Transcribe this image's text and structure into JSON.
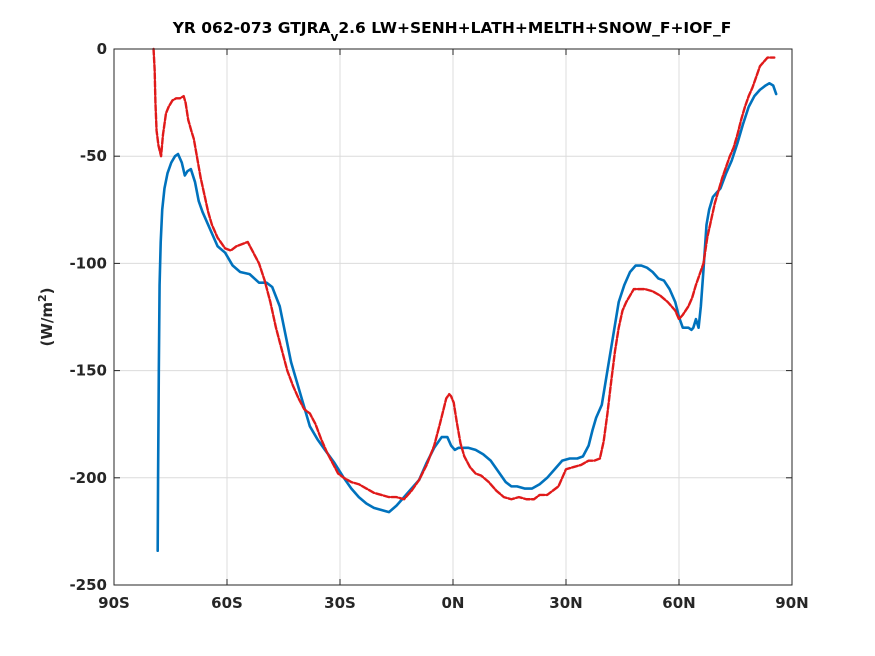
{
  "chart_data": {
    "type": "line",
    "title_main": "YR 062-073 GTJRA",
    "title_sub": "v",
    "title_rest": "2.6 LW+SENH+LATH+MELTH+SNOW_F+IOF_F",
    "ylabel_main": "(W/m",
    "ylabel_sup": "2",
    "ylabel_end": ")",
    "xlim": [
      -90,
      90
    ],
    "ylim": [
      -250,
      0
    ],
    "grid": true,
    "x_ticks": [
      {
        "value": -90,
        "label": "90S"
      },
      {
        "value": -60,
        "label": "60S"
      },
      {
        "value": -30,
        "label": "30S"
      },
      {
        "value": 0,
        "label": "0N"
      },
      {
        "value": 30,
        "label": "30N"
      },
      {
        "value": 60,
        "label": "60N"
      },
      {
        "value": 90,
        "label": "90N"
      }
    ],
    "y_ticks": [
      {
        "value": 0,
        "label": "0"
      },
      {
        "value": -50,
        "label": "-50"
      },
      {
        "value": -100,
        "label": "-100"
      },
      {
        "value": -150,
        "label": "-150"
      },
      {
        "value": -200,
        "label": "-200"
      },
      {
        "value": -250,
        "label": "-250"
      }
    ],
    "series": [
      {
        "color": "#0072bd",
        "style": "solid",
        "x": [
          -78.4,
          -78.3,
          -78.1,
          -77.9,
          -77.6,
          -77.2,
          -76.6,
          -75.8,
          -74.8,
          -73.8,
          -73.0,
          -72.0,
          -71.2,
          -70.5,
          -69.6,
          -68.5,
          -67.5,
          -66.5,
          -64.5,
          -62.5,
          -60.5,
          -58.5,
          -56.5,
          -54.0,
          -51.5,
          -49.5,
          -48.0,
          -46.0,
          -44.5,
          -43.0,
          -41.5,
          -40.0,
          -38.0,
          -36.0,
          -34.0,
          -31.5,
          -29.0,
          -27.0,
          -25.0,
          -23.0,
          -21.0,
          -19.0,
          -17.0,
          -15.0,
          -13.0,
          -11.0,
          -9.0,
          -7.0,
          -5.0,
          -3.0,
          -1.5,
          -0.5,
          0.5,
          1.5,
          2.5,
          4.0,
          6.0,
          8.0,
          10.0,
          12.0,
          14.0,
          15.5,
          17.0,
          19.0,
          21.0,
          22.0,
          23.0,
          25.0,
          27.0,
          29.0,
          31.0,
          33.0,
          34.5,
          36.0,
          37.0,
          38.0,
          39.5,
          41.0,
          42.5,
          44.0,
          45.5,
          47.0,
          48.5,
          50.0,
          51.5,
          53.0,
          54.5,
          56.0,
          57.5,
          59.0,
          60.0,
          61.0,
          62.5,
          63.3,
          63.8,
          64.5,
          65.2,
          65.8,
          66.5,
          67.3,
          68.0,
          69.0,
          70.0,
          71.0,
          72.5,
          74.0,
          75.5,
          77.0,
          78.5,
          80.0,
          81.5,
          83.0,
          84.0,
          85.0,
          85.8
        ],
        "y": [
          -234,
          -200,
          -150,
          -110,
          -90,
          -75,
          -65,
          -58,
          -53,
          -50,
          -49,
          -53,
          -59,
          -57,
          -56,
          -62,
          -71,
          -76,
          -84,
          -92,
          -95,
          -101,
          -104,
          -105,
          -109,
          -109,
          -111,
          -120,
          -133,
          -146,
          -155,
          -164,
          -176,
          -182,
          -187,
          -193,
          -200,
          -205,
          -209,
          -212,
          -214,
          -215,
          -216,
          -213,
          -209,
          -205,
          -201,
          -193,
          -186,
          -181,
          -181,
          -185,
          -187,
          -186,
          -186,
          -186,
          -187,
          -189,
          -192,
          -197,
          -202,
          -204,
          -204,
          -205,
          -205,
          -204,
          -203,
          -200,
          -196,
          -192,
          -191,
          -191,
          -190,
          -185,
          -178,
          -172,
          -166,
          -150,
          -134,
          -118,
          -110,
          -104,
          -101,
          -101,
          -102,
          -104,
          -107,
          -108,
          -112,
          -118,
          -125,
          -130,
          -130,
          -131,
          -130,
          -126,
          -130,
          -120,
          -103,
          -82,
          -75,
          -69,
          -67,
          -65,
          -58,
          -52,
          -44,
          -35,
          -27,
          -22,
          -19,
          -17,
          -16,
          -17,
          -21
        ]
      },
      {
        "color": "#e01a1a",
        "style": "dashed",
        "x": [
          -79.5,
          -79.2,
          -79.0,
          -78.7,
          -78.2,
          -77.5,
          -77.0,
          -76.2,
          -75.5,
          -74.5,
          -73.5,
          -72.5,
          -71.5,
          -71.0,
          -70.3,
          -69.5,
          -68.8,
          -68.0,
          -67.0,
          -66.0,
          -65.0,
          -64.0,
          -62.5,
          -60.5,
          -59.0,
          -57.5,
          -56.0,
          -54.5,
          -53.0,
          -51.5,
          -50.0,
          -48.5,
          -47.0,
          -45.5,
          -44.0,
          -42.5,
          -41.0,
          -39.5,
          -38.0,
          -36.5,
          -35.0,
          -33.5,
          -32.0,
          -30.5,
          -29.0,
          -27.0,
          -25.0,
          -23.0,
          -21.0,
          -19.0,
          -17.0,
          -15.0,
          -13.0,
          -11.0,
          -9.0,
          -7.0,
          -5.0,
          -3.5,
          -2.5,
          -1.8,
          -1.0,
          -0.5,
          0.2,
          1.0,
          2.0,
          3.0,
          4.5,
          6.0,
          7.5,
          9.5,
          11.5,
          13.5,
          15.5,
          17.5,
          19.5,
          21.5,
          23.0,
          25.0,
          26.5,
          28.0,
          30.0,
          32.0,
          34.0,
          36.0,
          37.5,
          39.0,
          40.0,
          41.0,
          42.0,
          43.0,
          44.0,
          45.0,
          46.0,
          47.0,
          48.0,
          49.5,
          51.0,
          53.0,
          55.0,
          57.0,
          59.0,
          60.0,
          61.0,
          62.5,
          63.5,
          64.5,
          65.5,
          66.5,
          67.5,
          68.5,
          69.5,
          70.5,
          71.5,
          72.5,
          73.5,
          74.5,
          75.5,
          76.5,
          77.5,
          78.5,
          79.5,
          80.5,
          81.5,
          82.5,
          83.5,
          84.5,
          85.3
        ],
        "y": [
          0,
          -10,
          -25,
          -38,
          -45,
          -50,
          -40,
          -30,
          -27,
          -24,
          -23,
          -23,
          -22,
          -25,
          -33,
          -38,
          -42,
          -50,
          -60,
          -68,
          -76,
          -82,
          -88,
          -93,
          -94,
          -92,
          -91,
          -90,
          -95,
          -100,
          -108,
          -118,
          -130,
          -140,
          -150,
          -157,
          -163,
          -168,
          -170,
          -175,
          -182,
          -188,
          -193,
          -198,
          -200,
          -202,
          -203,
          -205,
          -207,
          -208,
          -209,
          -209,
          -210,
          -206,
          -201,
          -194,
          -185,
          -175,
          -168,
          -163,
          -161,
          -162,
          -165,
          -174,
          -184,
          -190,
          -195,
          -198,
          -199,
          -202,
          -206,
          -209,
          -210,
          -209,
          -210,
          -210,
          -208,
          -208,
          -206,
          -204,
          -196,
          -195,
          -194,
          -192,
          -192,
          -191,
          -183,
          -170,
          -155,
          -141,
          -130,
          -122,
          -118,
          -115,
          -112,
          -112,
          -112,
          -113,
          -115,
          -118,
          -122,
          -126,
          -124,
          -120,
          -116,
          -110,
          -105,
          -100,
          -88,
          -80,
          -72,
          -66,
          -60,
          -55,
          -50,
          -46,
          -40,
          -33,
          -27,
          -22,
          -18,
          -13,
          -8,
          -6,
          -4,
          -4,
          -4
        ]
      }
    ]
  }
}
